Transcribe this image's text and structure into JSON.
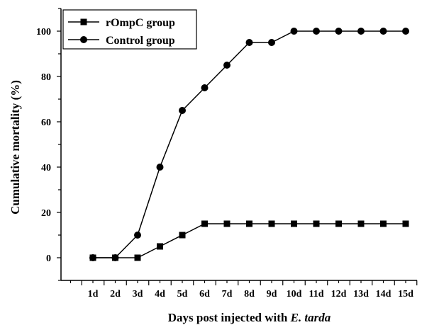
{
  "chart_data": {
    "type": "line",
    "xlabel_main": "Days post injected with ",
    "xlabel_italic": "E. tarda",
    "ylabel": "Cumulative mortality (%)",
    "categories": [
      "1d",
      "2d",
      "3d",
      "4d",
      "5d",
      "6d",
      "7d",
      "8d",
      "9d",
      "10d",
      "11d",
      "12d",
      "13d",
      "14d",
      "15d"
    ],
    "ylim": [
      -10,
      110
    ],
    "yticks": [
      0,
      20,
      40,
      60,
      80,
      100
    ],
    "grid": false,
    "legend_position": "top-left",
    "series": [
      {
        "name": "rOmpC group",
        "marker": "square",
        "color": "#000000",
        "values": [
          0,
          0,
          0,
          5,
          10,
          15,
          15,
          15,
          15,
          15,
          15,
          15,
          15,
          15,
          15
        ]
      },
      {
        "name": "Control group",
        "marker": "circle",
        "color": "#000000",
        "values": [
          0,
          0,
          10,
          40,
          65,
          75,
          85,
          95,
          95,
          100,
          100,
          100,
          100,
          100,
          100
        ]
      }
    ]
  }
}
